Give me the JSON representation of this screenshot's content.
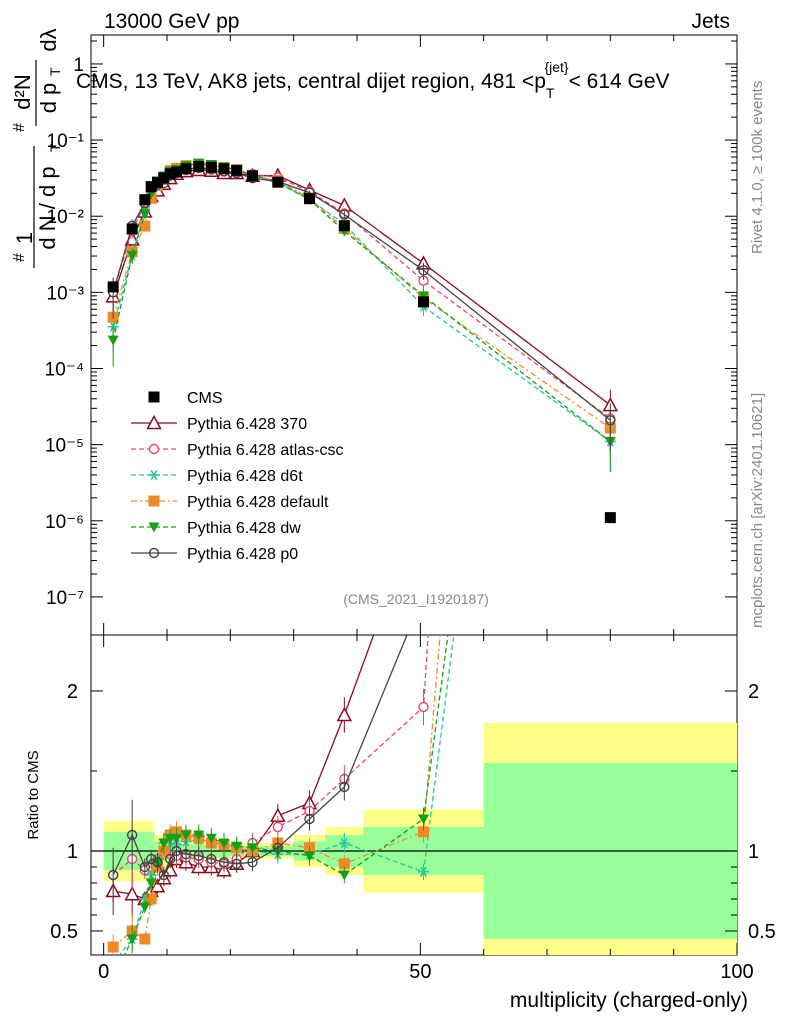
{
  "header": {
    "left": "13000 GeV pp",
    "right": "Jets"
  },
  "side_labels": {
    "rivet": "Rivet 4.1.0, ≥ 100k events",
    "mcplots": "mcplots.cern.ch [arXiv:2401.10621]"
  },
  "watermark": "(CMS_2021_I1920187)",
  "ratio_ylabel": "Ratio to CMS",
  "colors": {
    "cms": "#000000",
    "p370": "#8b0a1e",
    "atlas": "#e8456e",
    "d6t": "#1ec8a0",
    "default": "#f08a28",
    "dw": "#14a014",
    "p0": "#444444",
    "band_outer": "#ffff88",
    "band_inner": "#99ff99"
  },
  "chart_data": {
    "type": "line",
    "title": "CMS, 13 TeV, AK8 jets, central dijet region, 481 <p_T^{jet}< 614 GeV",
    "title_parts": {
      "main": "CMS, 13 TeV, AK8 jets, central dijet region, 481 <p",
      "sub": "T",
      "sup": "{jet}",
      "end": "< 614 GeV"
    },
    "xlabel": "multiplicity (charged-only)",
    "ylabel": "1/dN/dp_T  d²N/dp_T dλ",
    "ylabel_parts": {
      "one": "1",
      "hash": "#",
      "dN": "d N / d p",
      "T": "T",
      "d2N": "d²N",
      "dp": "d p",
      "dl": "dλ"
    },
    "xlim": [
      -2,
      100
    ],
    "xticks": [
      "0",
      "50",
      "100"
    ],
    "main_ylim_log10": [
      -7.5,
      0.38
    ],
    "main_yticks": [
      "10⁻⁷",
      "10⁻⁶",
      "10⁻⁵",
      "10⁻⁴",
      "10⁻³",
      "10⁻²",
      "10⁻¹",
      "1"
    ],
    "ratio_ylim": [
      0.35,
      2.35
    ],
    "ratio_yticks": [
      "0.5",
      "1",
      "2"
    ],
    "bin_edges": [
      0,
      3,
      6,
      7,
      8,
      9,
      10,
      11,
      12,
      14,
      16,
      18,
      20,
      22,
      25,
      30,
      35,
      41,
      60,
      100
    ],
    "x": [
      1.5,
      4.5,
      6.5,
      7.5,
      8.5,
      9.5,
      10.5,
      11.5,
      13,
      15,
      17,
      19,
      21,
      23.5,
      27.5,
      32.5,
      38,
      50.5,
      80
    ],
    "ratio_bands": {
      "outer": [
        0.19,
        0.19,
        0.19,
        0.19,
        0.1,
        0.1,
        0.1,
        0.1,
        0.06,
        0.06,
        0.06,
        0.06,
        0.05,
        0.05,
        0.05,
        0.1,
        0.15,
        0.26,
        0.8
      ],
      "inner": [
        0.12,
        0.12,
        0.12,
        0.12,
        0.06,
        0.06,
        0.06,
        0.06,
        0.04,
        0.04,
        0.04,
        0.04,
        0.03,
        0.03,
        0.03,
        0.06,
        0.1,
        0.15,
        0.55
      ]
    },
    "series": [
      {
        "name": "CMS",
        "key": "cms",
        "marker": "square",
        "values": [
          0.00118,
          0.0068,
          0.0165,
          0.0245,
          0.028,
          0.032,
          0.036,
          0.038,
          0.042,
          0.045,
          0.044,
          0.042,
          0.04,
          0.034,
          0.028,
          0.017,
          0.0075,
          0.00075,
          1.1e-06
        ]
      },
      {
        "name": "Pythia 6.428 370",
        "key": "p370",
        "marker": "triangle",
        "dash": "",
        "ratio": [
          0.75,
          0.73,
          0.7,
          0.75,
          0.78,
          0.83,
          0.88,
          0.95,
          0.93,
          0.9,
          0.9,
          0.88,
          0.92,
          1.0,
          1.22,
          1.3,
          1.85,
          3.2,
          30
        ]
      },
      {
        "name": "Pythia 6.428 atlas-csc",
        "key": "atlas",
        "marker": "circle",
        "dash": "5,3",
        "ratio": [
          0.85,
          0.95,
          0.88,
          0.9,
          0.95,
          1.0,
          0.98,
          0.97,
          0.96,
          0.95,
          0.93,
          0.92,
          0.95,
          1.05,
          1.15,
          1.25,
          1.45,
          1.9,
          20
        ]
      },
      {
        "name": "Pythia 6.428 d6t",
        "key": "d6t",
        "marker": "star",
        "dash": "5,3",
        "ratio": [
          0.3,
          0.45,
          0.7,
          0.85,
          0.95,
          1.05,
          1.05,
          1.04,
          1.06,
          1.07,
          1.06,
          1.04,
          1.02,
          1.0,
          0.98,
          0.98,
          1.05,
          0.87,
          10
        ]
      },
      {
        "name": "Pythia 6.428 default",
        "key": "default",
        "marker": "square",
        "dash": "6,3,2,3",
        "ratio": [
          0.4,
          0.5,
          0.45,
          0.7,
          0.9,
          1.0,
          1.1,
          1.12,
          1.1,
          1.08,
          1.05,
          1.04,
          1.02,
          1.0,
          1.05,
          1.02,
          0.92,
          1.12,
          15
        ]
      },
      {
        "name": "Pythia 6.428 dw",
        "key": "dw",
        "marker": "trianglefill",
        "dash": "5,3",
        "ratio": [
          0.2,
          0.45,
          0.65,
          0.8,
          0.92,
          1.05,
          1.08,
          1.08,
          1.1,
          1.1,
          1.08,
          1.05,
          1.03,
          1.02,
          1.0,
          0.97,
          0.85,
          1.2,
          10
        ]
      },
      {
        "name": "Pythia 6.428 p0",
        "key": "p0",
        "marker": "opencircle",
        "dash": "",
        "ratio": [
          0.85,
          1.1,
          0.9,
          0.95,
          0.93,
          0.85,
          0.95,
          1.0,
          0.98,
          0.97,
          0.95,
          0.93,
          0.92,
          0.93,
          1.02,
          1.2,
          1.4,
          2.6,
          19
        ]
      }
    ]
  }
}
